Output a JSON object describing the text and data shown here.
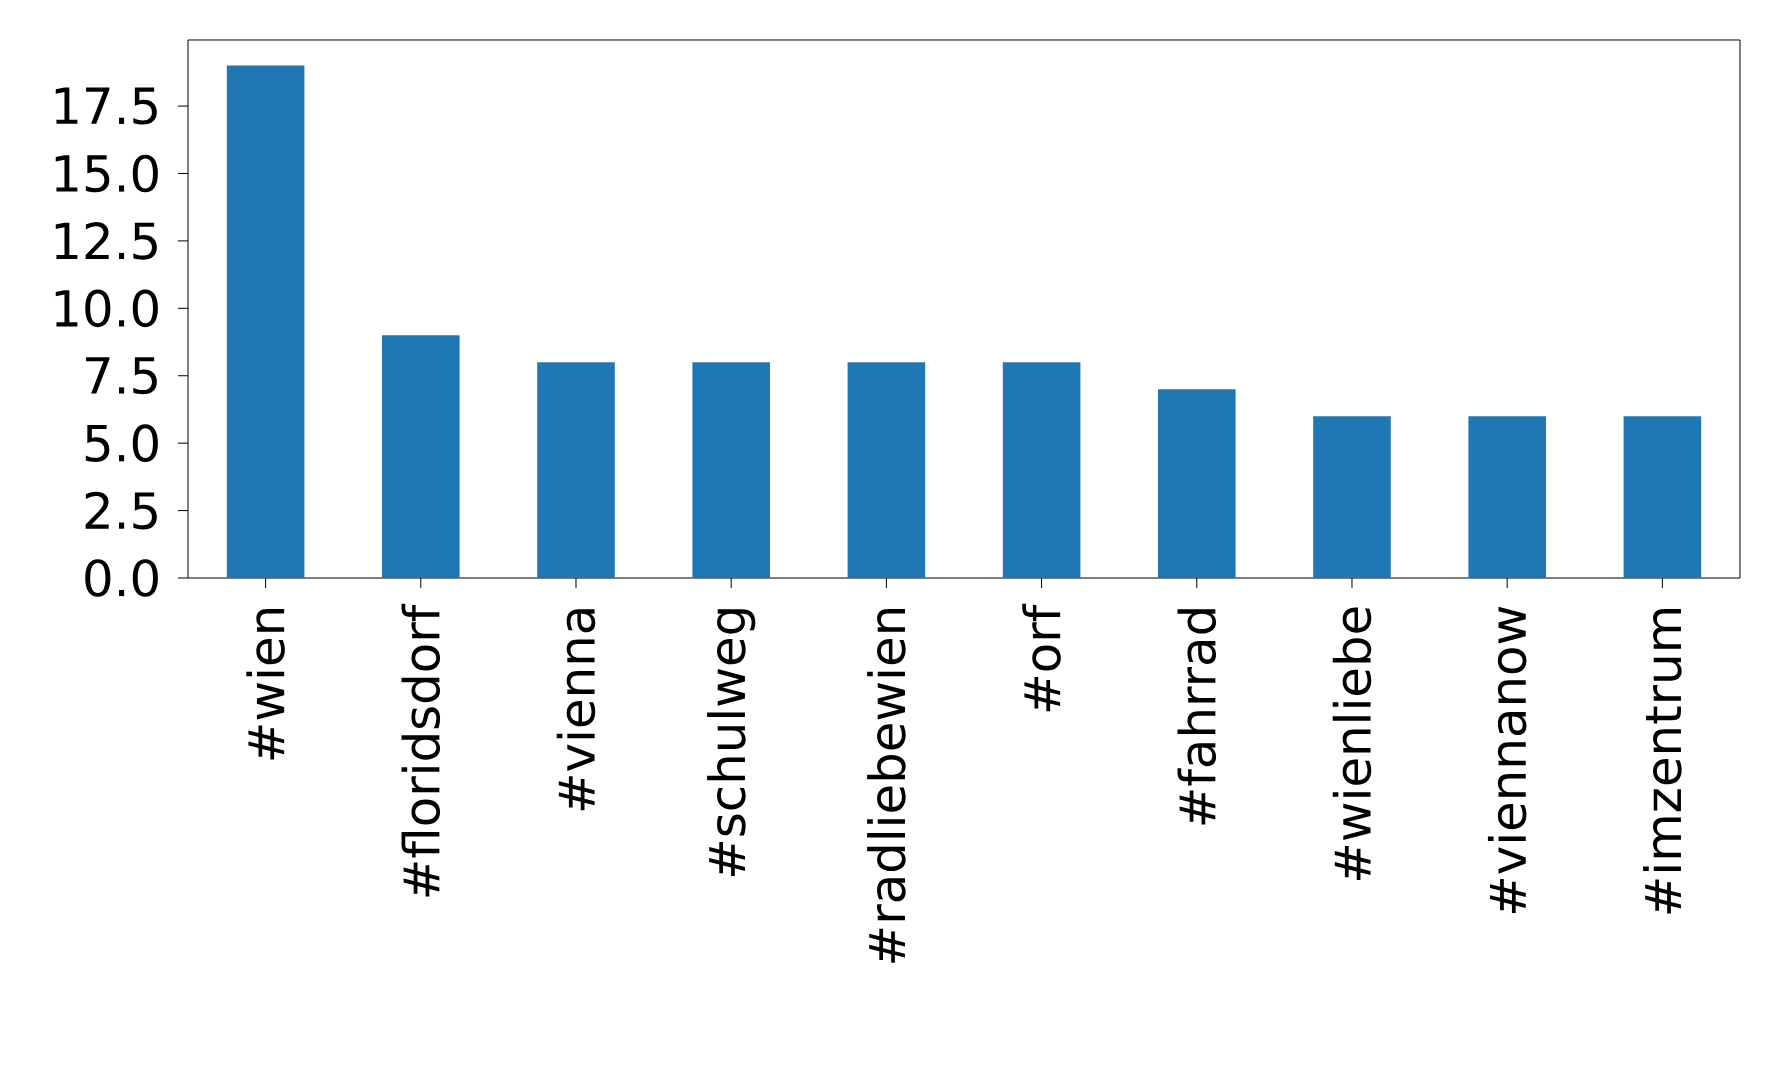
{
  "chart_data": {
    "type": "bar",
    "categories": [
      "#wien",
      "#floridsdorf",
      "#vienna",
      "#schulweg",
      "#radliebewien",
      "#orf",
      "#fahrrad",
      "#wienliebe",
      "#viennanow",
      "#imzentrum"
    ],
    "values": [
      19,
      9,
      8,
      8,
      8,
      8,
      7,
      6,
      6,
      6
    ],
    "color": "#1f77b4",
    "ylim": [
      0,
      19.95
    ],
    "yticks": [
      {
        "value": 0,
        "label": "0.0"
      },
      {
        "value": 2.5,
        "label": "2.5"
      },
      {
        "value": 5,
        "label": "5.0"
      },
      {
        "value": 7.5,
        "label": "7.5"
      },
      {
        "value": 10,
        "label": "10.0"
      },
      {
        "value": 12.5,
        "label": "12.5"
      },
      {
        "value": 15,
        "label": "15.0"
      },
      {
        "value": 17.5,
        "label": "17.5"
      }
    ]
  }
}
